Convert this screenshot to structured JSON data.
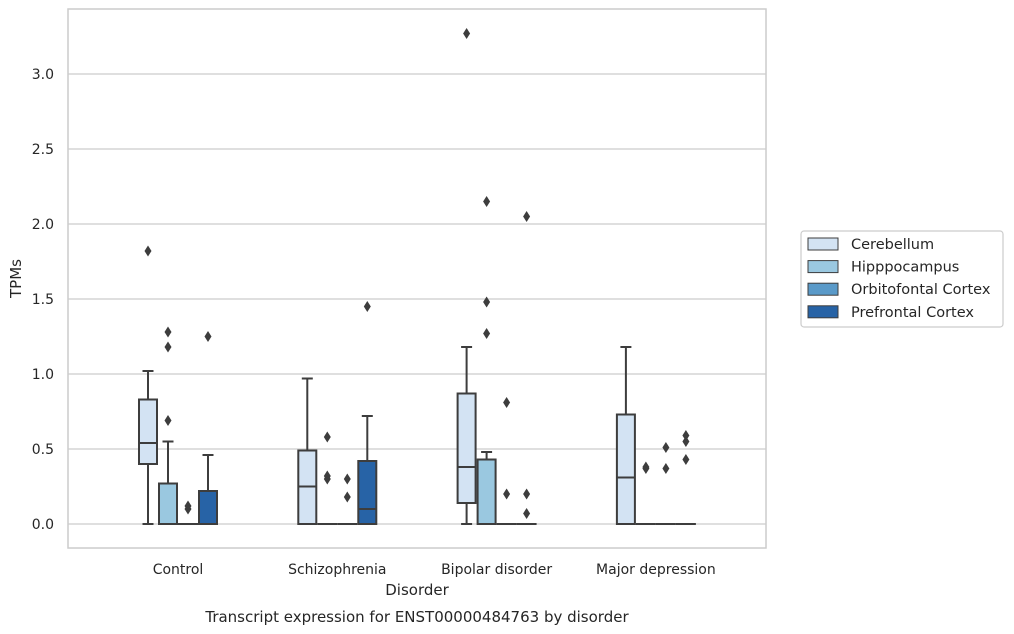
{
  "chart_data": {
    "type": "box",
    "xlabel": "Disorder",
    "ylabel": "TPMs",
    "caption": "Transcript expression for ENST00000484763 by disorder",
    "ylim": [
      -0.16,
      3.44
    ],
    "yticks": [
      "0.0",
      "0.5",
      "1.0",
      "1.5",
      "2.0",
      "2.5",
      "3.0"
    ],
    "grid": "horizontal",
    "legend_position": "right",
    "categories": [
      "Control",
      "Schizophrenia",
      "Bipolar disorder",
      "Major depression"
    ],
    "series": [
      {
        "name": "Cerebellum",
        "color": "#d3e3f3",
        "boxes": [
          {
            "min": 0.0,
            "q1": 0.4,
            "median": 0.54,
            "q3": 0.83,
            "max": 1.02,
            "outliers": [
              1.82
            ]
          },
          {
            "min": 0.0,
            "q1": 0.0,
            "median": 0.25,
            "q3": 0.49,
            "max": 0.97,
            "outliers": []
          },
          {
            "min": 0.0,
            "q1": 0.14,
            "median": 0.38,
            "q3": 0.87,
            "max": 1.18,
            "outliers": [
              3.27
            ]
          },
          {
            "min": 0.0,
            "q1": 0.0,
            "median": 0.31,
            "q3": 0.73,
            "max": 1.18,
            "outliers": []
          }
        ]
      },
      {
        "name": "Hipppocampus",
        "color": "#9ac8e0",
        "boxes": [
          {
            "min": 0.0,
            "q1": 0.0,
            "median": 0.0,
            "q3": 0.27,
            "max": 0.55,
            "outliers": [
              0.69,
              1.18,
              1.28
            ]
          },
          {
            "min": 0.0,
            "q1": 0.0,
            "median": 0.0,
            "q3": 0.0,
            "max": 0.0,
            "outliers": [
              0.3,
              0.32,
              0.58
            ]
          },
          {
            "min": 0.0,
            "q1": 0.0,
            "median": 0.0,
            "q3": 0.43,
            "max": 0.48,
            "outliers": [
              1.27,
              1.48,
              2.15
            ]
          },
          {
            "min": 0.0,
            "q1": 0.0,
            "median": 0.0,
            "q3": 0.0,
            "max": 0.0,
            "outliers": [
              0.37,
              0.38
            ]
          }
        ]
      },
      {
        "name": "Orbitofontal Cortex",
        "color": "#5a9ac9",
        "boxes": [
          {
            "min": 0.0,
            "q1": 0.0,
            "median": 0.0,
            "q3": 0.0,
            "max": 0.0,
            "outliers": [
              0.1,
              0.12
            ]
          },
          {
            "min": 0.0,
            "q1": 0.0,
            "median": 0.0,
            "q3": 0.0,
            "max": 0.0,
            "outliers": [
              0.18,
              0.3
            ]
          },
          {
            "min": 0.0,
            "q1": 0.0,
            "median": 0.0,
            "q3": 0.0,
            "max": 0.0,
            "outliers": [
              0.2,
              0.81
            ]
          },
          {
            "min": 0.0,
            "q1": 0.0,
            "median": 0.0,
            "q3": 0.0,
            "max": 0.0,
            "outliers": [
              0.37,
              0.51
            ]
          }
        ]
      },
      {
        "name": "Prefrontal Cortex",
        "color": "#2763a6",
        "boxes": [
          {
            "min": 0.0,
            "q1": 0.0,
            "median": 0.0,
            "q3": 0.22,
            "max": 0.46,
            "outliers": [
              1.25
            ]
          },
          {
            "min": 0.0,
            "q1": 0.0,
            "median": 0.1,
            "q3": 0.42,
            "max": 0.72,
            "outliers": [
              1.45
            ]
          },
          {
            "min": 0.0,
            "q1": 0.0,
            "median": 0.0,
            "q3": 0.0,
            "max": 0.0,
            "outliers": [
              0.07,
              0.2,
              2.05
            ]
          },
          {
            "min": 0.0,
            "q1": 0.0,
            "median": 0.0,
            "q3": 0.0,
            "max": 0.0,
            "outliers": [
              0.43,
              0.55,
              0.59
            ]
          }
        ]
      }
    ]
  }
}
